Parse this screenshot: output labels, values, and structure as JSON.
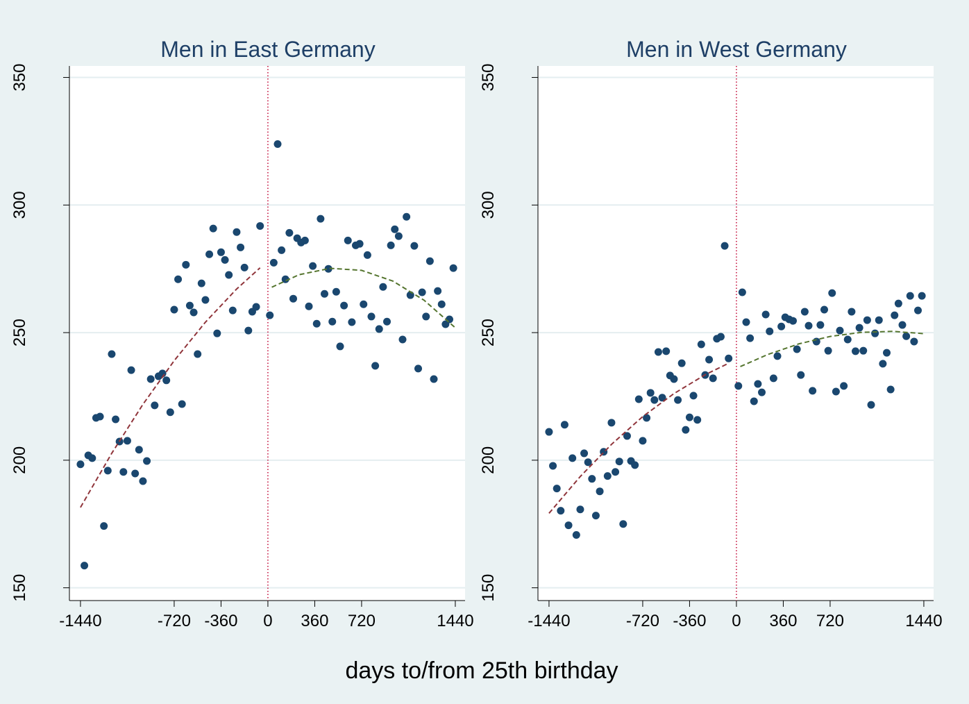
{
  "chart_data": [
    {
      "type": "scatter",
      "title": "Men in East Germany",
      "xlim": [
        -1525,
        1515
      ],
      "ylim": [
        145,
        354.5
      ],
      "xticks": [
        -1440,
        -720,
        -360,
        0,
        360,
        720,
        1440
      ],
      "yticks": [
        150,
        200,
        250,
        300,
        350
      ],
      "grid": true,
      "xline": 0,
      "xline_color": "#c10534",
      "series": [
        {
          "type": "scatter",
          "color": "#1a476f",
          "x": [
            -1440,
            -1410,
            -1380,
            -1350,
            -1320,
            -1290,
            -1260,
            -1230,
            -1200,
            -1170,
            -1140,
            -1110,
            -1080,
            -1050,
            -1020,
            -990,
            -960,
            -930,
            -900,
            -870,
            -840,
            -810,
            -780,
            -750,
            -720,
            -690,
            -660,
            -630,
            -600,
            -570,
            -540,
            -510,
            -480,
            -450,
            -420,
            -390,
            -360,
            -330,
            -300,
            -270,
            -240,
            -210,
            -180,
            -150,
            -120,
            -90,
            -60
          ],
          "values": [
            198.4,
            158.7,
            201.9,
            200.8,
            216.6,
            217.1,
            174.2,
            195.9,
            241.6,
            216.0,
            207.3,
            195.4,
            207.6,
            235.3,
            194.8,
            204.1,
            191.8,
            199.7,
            231.8,
            221.5,
            232.9,
            234.0,
            231.3,
            218.8,
            259.0,
            270.9,
            222.0,
            276.6,
            260.6,
            257.9,
            241.6,
            269.3,
            262.8,
            280.7,
            290.8,
            249.7,
            281.5,
            278.5,
            272.6,
            258.7,
            289.4,
            283.4,
            275.5,
            250.8,
            258.2,
            260.1,
            291.8
          ]
        },
        {
          "type": "scatter",
          "color": "#1a476f",
          "x": [
            15,
            45,
            75,
            105,
            135,
            165,
            195,
            225,
            255,
            285,
            315,
            345,
            375,
            405,
            435,
            465,
            495,
            525,
            555,
            585,
            615,
            645,
            675,
            705,
            735,
            765,
            795,
            825,
            855,
            885,
            915,
            945,
            975,
            1005,
            1035,
            1065,
            1095,
            1125,
            1155,
            1185,
            1215,
            1245,
            1275,
            1305,
            1335,
            1365,
            1395,
            1425
          ],
          "values": [
            256.8,
            277.4,
            323.9,
            282.3,
            270.9,
            289.1,
            263.3,
            287.0,
            285.3,
            286.1,
            260.3,
            276.1,
            253.5,
            294.6,
            265.2,
            275.0,
            254.3,
            266.0,
            244.6,
            260.6,
            286.1,
            254.1,
            284.2,
            284.8,
            261.1,
            280.4,
            256.3,
            237.0,
            251.4,
            267.9,
            254.3,
            284.2,
            290.5,
            287.8,
            247.3,
            295.4,
            264.7,
            284.0,
            235.9,
            265.8,
            256.3,
            278.0,
            231.8,
            266.3,
            261.1,
            253.3,
            255.2,
            275.3
          ]
        },
        {
          "type": "line",
          "color": "#90353b",
          "dash": true,
          "x": [
            -1440,
            -1200,
            -960,
            -720,
            -480,
            -240,
            -60
          ],
          "values": [
            181.5,
            202.7,
            221.9,
            239.0,
            254.1,
            267.1,
            275.4
          ]
        },
        {
          "type": "line",
          "color": "#55752f",
          "dash": true,
          "x": [
            30,
            240,
            480,
            720,
            960,
            1200,
            1440
          ],
          "values": [
            267.8,
            272.7,
            275.2,
            274.4,
            270.2,
            262.7,
            251.9
          ]
        }
      ]
    },
    {
      "type": "scatter",
      "title": "Men in West Germany",
      "xlim": [
        -1525,
        1515
      ],
      "ylim": [
        145,
        354.5
      ],
      "xticks": [
        -1440,
        -720,
        -360,
        0,
        360,
        720,
        1440
      ],
      "yticks": [
        150,
        200,
        250,
        300,
        350
      ],
      "grid": true,
      "xline": 0,
      "xline_color": "#c10534",
      "series": [
        {
          "type": "scatter",
          "color": "#1a476f",
          "x": [
            -1440,
            -1410,
            -1380,
            -1350,
            -1320,
            -1290,
            -1260,
            -1230,
            -1200,
            -1170,
            -1140,
            -1110,
            -1080,
            -1050,
            -1020,
            -990,
            -960,
            -930,
            -900,
            -870,
            -840,
            -810,
            -780,
            -750,
            -720,
            -690,
            -660,
            -630,
            -600,
            -570,
            -540,
            -510,
            -480,
            -450,
            -420,
            -390,
            -360,
            -330,
            -300,
            -270,
            -240,
            -210,
            -180,
            -150,
            -120,
            -90,
            -60
          ],
          "values": [
            211.1,
            197.8,
            188.9,
            180.2,
            213.9,
            174.5,
            200.8,
            170.7,
            180.7,
            202.7,
            199.2,
            192.7,
            178.3,
            187.8,
            203.3,
            193.8,
            214.7,
            195.4,
            199.5,
            175.0,
            209.5,
            199.7,
            198.1,
            223.9,
            207.6,
            216.6,
            226.4,
            223.6,
            242.4,
            224.5,
            242.7,
            233.2,
            231.8,
            223.6,
            238.0,
            211.9,
            216.8,
            225.3,
            215.8,
            245.4,
            233.4,
            239.4,
            232.1,
            247.6,
            248.4,
            284.0,
            239.9
          ]
        },
        {
          "type": "scatter",
          "color": "#1a476f",
          "x": [
            15,
            45,
            75,
            105,
            135,
            165,
            195,
            225,
            255,
            285,
            315,
            345,
            375,
            405,
            435,
            465,
            495,
            525,
            555,
            585,
            615,
            645,
            675,
            705,
            735,
            765,
            795,
            825,
            855,
            885,
            915,
            945,
            975,
            1005,
            1035,
            1065,
            1095,
            1125,
            1155,
            1185,
            1215,
            1245,
            1275,
            1305,
            1335,
            1365,
            1395,
            1425
          ],
          "values": [
            229.1,
            265.8,
            254.1,
            247.8,
            223.1,
            229.9,
            226.6,
            257.1,
            250.5,
            232.1,
            240.8,
            252.4,
            256.0,
            255.2,
            254.6,
            243.5,
            233.4,
            258.2,
            252.7,
            227.2,
            246.5,
            253.0,
            259.0,
            242.9,
            265.5,
            226.9,
            250.8,
            229.1,
            247.3,
            258.2,
            242.7,
            251.9,
            242.9,
            254.9,
            221.7,
            249.7,
            254.9,
            237.8,
            242.1,
            227.7,
            256.8,
            261.4,
            253.0,
            248.6,
            264.4,
            246.5,
            258.7,
            264.4
          ]
        },
        {
          "type": "line",
          "color": "#90353b",
          "dash": true,
          "x": [
            -1440,
            -1200,
            -960,
            -720,
            -480,
            -240,
            -60
          ],
          "values": [
            179.2,
            193.6,
            206.2,
            217.1,
            226.1,
            233.5,
            238.0
          ]
        },
        {
          "type": "line",
          "color": "#55752f",
          "dash": true,
          "x": [
            30,
            240,
            480,
            720,
            960,
            1200,
            1440
          ],
          "values": [
            236.7,
            241.4,
            245.6,
            248.5,
            250.1,
            250.5,
            249.6
          ]
        }
      ]
    }
  ],
  "shared_x_label": "days to/from 25th birthday"
}
